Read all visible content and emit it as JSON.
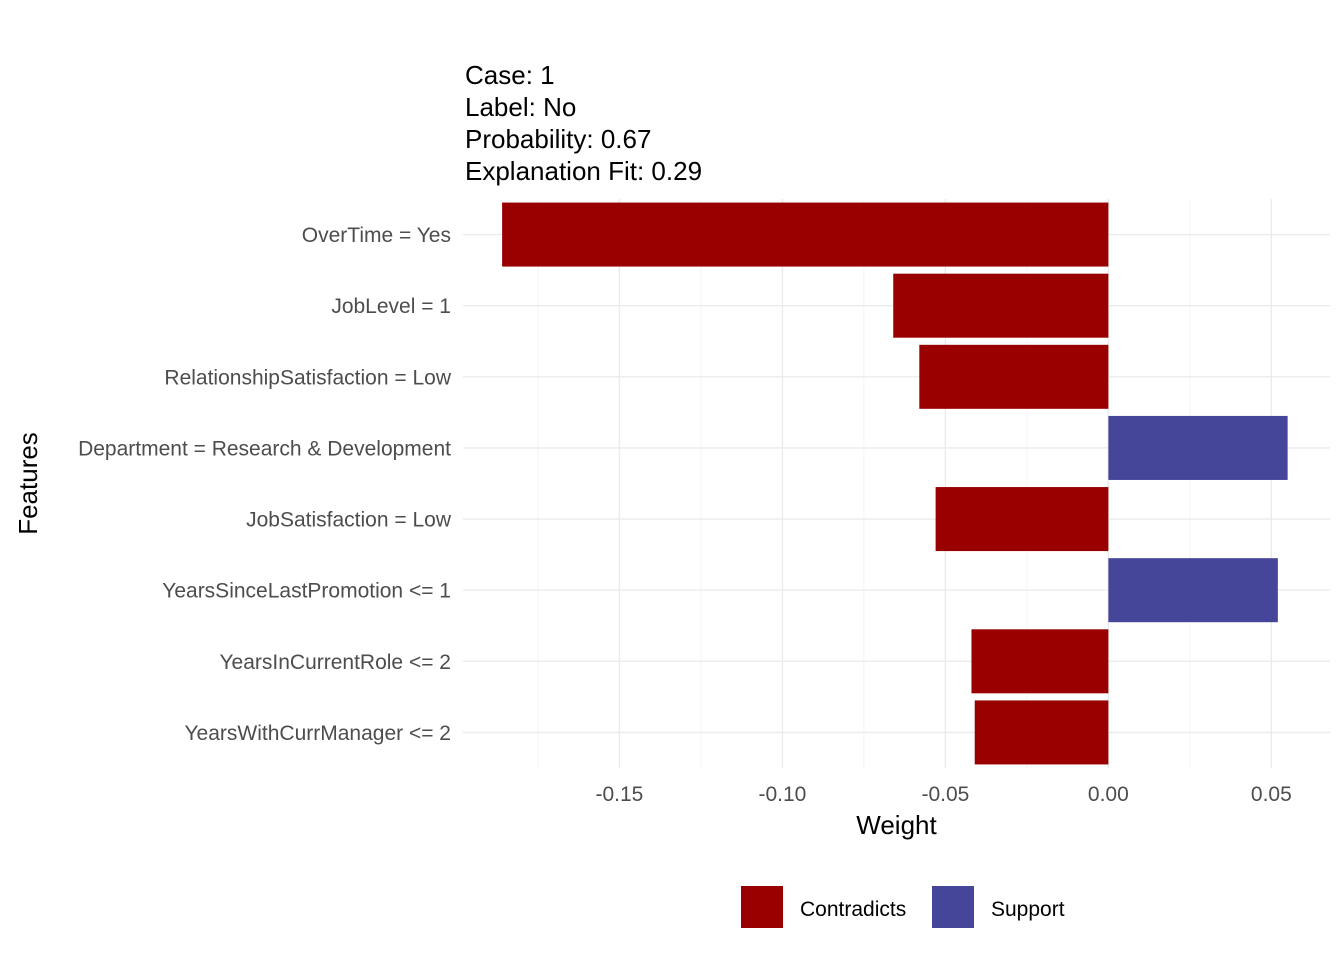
{
  "chart_data": {
    "type": "bar",
    "orientation": "horizontal",
    "title_lines": [
      "Case: 1",
      "Label: No",
      "Probability: 0.67",
      "Explanation Fit: 0.29"
    ],
    "xlabel": "Weight",
    "ylabel": "Features",
    "xlim": [
      -0.198,
      0.068
    ],
    "x_ticks": [
      -0.15,
      -0.1,
      -0.05,
      0.0,
      0.05
    ],
    "x_tick_labels": [
      "-0.15",
      "-0.10",
      "-0.05",
      "0.00",
      "0.05"
    ],
    "x_minor_ticks": [
      -0.175,
      -0.125,
      -0.075,
      -0.025,
      0.025
    ],
    "categories": [
      "OverTime = Yes",
      "JobLevel = 1",
      "RelationshipSatisfaction = Low",
      "Department = Research & Development",
      "JobSatisfaction = Low",
      "YearsSinceLastPromotion <= 1",
      "YearsInCurrentRole <= 2",
      "YearsWithCurrManager <= 2"
    ],
    "values": [
      -0.186,
      -0.066,
      -0.058,
      0.055,
      -0.053,
      0.052,
      -0.042,
      -0.041
    ],
    "groups": [
      "Contradicts",
      "Contradicts",
      "Contradicts",
      "Support",
      "Contradicts",
      "Support",
      "Contradicts",
      "Contradicts"
    ],
    "colors": {
      "Contradicts": "#990000",
      "Support": "#454599"
    },
    "legend": {
      "position": "bottom",
      "entries": [
        {
          "label": "Contradicts",
          "group": "Contradicts"
        },
        {
          "label": "Support",
          "group": "Support"
        }
      ]
    },
    "grid": true
  }
}
